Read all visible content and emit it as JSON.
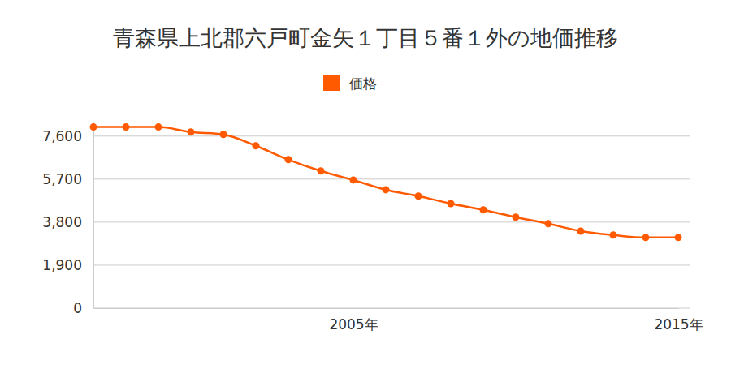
{
  "chart_data": {
    "type": "line",
    "title": "青森県上北郡六戸町金矢１丁目５番１外の地価推移",
    "x": [
      1997,
      1998,
      1999,
      2000,
      2001,
      2002,
      2003,
      2004,
      2005,
      2006,
      2007,
      2008,
      2009,
      2010,
      2011,
      2012,
      2013,
      2014,
      2015
    ],
    "series": [
      {
        "name": "価格",
        "color": "#ff5a00",
        "marker": "circle",
        "values": [
          8000,
          8000,
          8000,
          7780,
          7670,
          7170,
          6560,
          6060,
          5660,
          5230,
          4950,
          4620,
          4340,
          4020,
          3730,
          3400,
          3230,
          3120,
          3120
        ]
      }
    ],
    "xlim": [
      1997,
      2015
    ],
    "xticks": [
      {
        "value": 2005,
        "label": "2005年"
      },
      {
        "value": 2015,
        "label": "2015年"
      }
    ],
    "ylim": [
      0,
      8200
    ],
    "yticks": [
      0,
      {
        "value": 1900,
        "label": "1,900"
      },
      {
        "value": 3800,
        "label": "3,800"
      },
      {
        "value": 5700,
        "label": "5,700"
      },
      {
        "value": 7600,
        "label": "7,600"
      }
    ],
    "grid": true,
    "legend": "top"
  }
}
